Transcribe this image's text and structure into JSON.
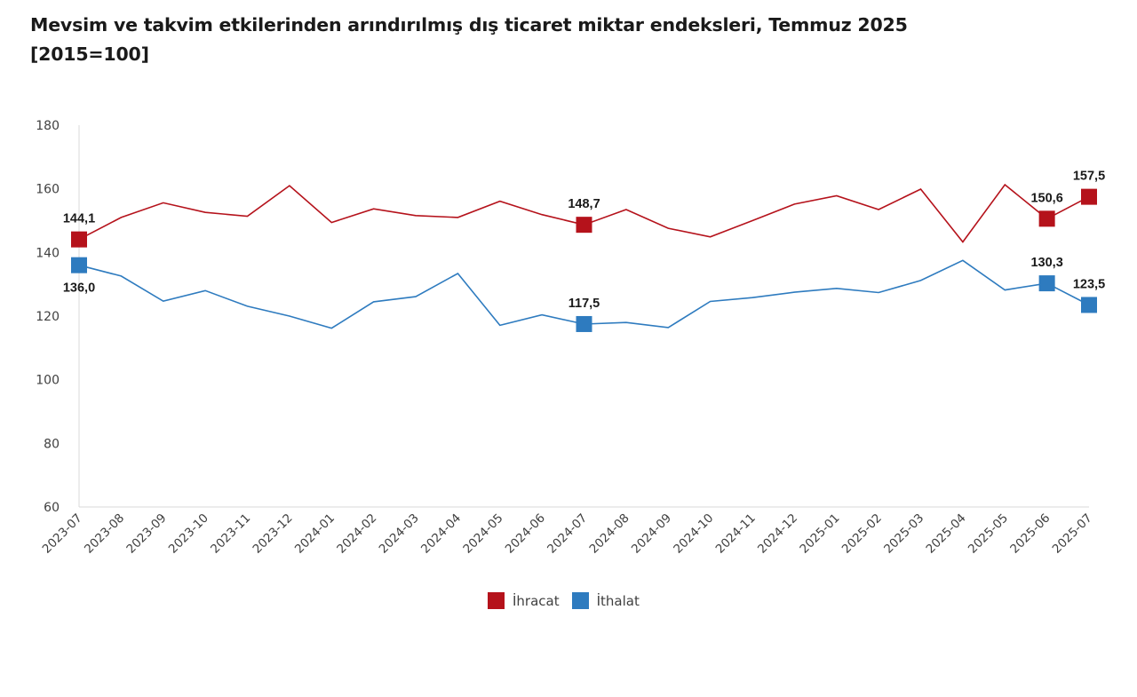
{
  "header": {
    "title_line1": "Mevsim ve takvim etkilerinden arındırılmış dış ticaret miktar endeksleri, Temmuz 2025",
    "title_line2": "[2015=100]"
  },
  "colors": {
    "ihracat": "#b5121b",
    "ithalat": "#2e7bbf",
    "axis": "#d9d9d9"
  },
  "legend": {
    "ihracat_label": "İhracat",
    "ithalat_label": "İthalat"
  },
  "chart_data": {
    "type": "line",
    "title": "Mevsim ve takvim etkilerinden arındırılmış dış ticaret miktar endeksleri, Temmuz 2025 [2015=100]",
    "xlabel": "",
    "ylabel": "",
    "ylim": [
      60,
      180
    ],
    "yticks": [
      60,
      80,
      100,
      120,
      140,
      160,
      180
    ],
    "grid": false,
    "legend_position": "bottom-center",
    "categories": [
      "2023-07",
      "2023-08",
      "2023-09",
      "2023-10",
      "2023-11",
      "2023-12",
      "2024-01",
      "2024-02",
      "2024-03",
      "2024-04",
      "2024-05",
      "2024-06",
      "2024-07",
      "2024-08",
      "2024-09",
      "2024-10",
      "2024-11",
      "2024-12",
      "2025-01",
      "2025-02",
      "2025-03",
      "2025-04",
      "2025-05",
      "2025-06",
      "2025-07"
    ],
    "series": [
      {
        "name": "İhracat",
        "color": "#b5121b",
        "values": [
          144.1,
          151.0,
          155.6,
          152.6,
          151.4,
          161.0,
          149.4,
          153.7,
          151.6,
          151.0,
          156.1,
          151.9,
          148.7,
          153.5,
          147.6,
          144.9,
          150.0,
          155.2,
          157.8,
          153.5,
          159.9,
          143.3,
          161.3,
          150.6,
          157.5
        ],
        "labeled_points": [
          {
            "index": 0,
            "label": "144,1",
            "position": "above"
          },
          {
            "index": 12,
            "label": "148,7",
            "position": "above"
          },
          {
            "index": 23,
            "label": "150,6",
            "position": "above"
          },
          {
            "index": 24,
            "label": "157,5",
            "position": "above"
          }
        ]
      },
      {
        "name": "İthalat",
        "color": "#2e7bbf",
        "values": [
          136.0,
          132.6,
          124.7,
          128.0,
          123.1,
          120.0,
          116.2,
          124.5,
          126.1,
          133.4,
          117.1,
          120.4,
          117.5,
          118.0,
          116.4,
          124.6,
          125.8,
          127.5,
          128.7,
          127.4,
          131.2,
          137.5,
          128.2,
          130.3,
          123.5
        ],
        "labeled_points": [
          {
            "index": 0,
            "label": "136,0",
            "position": "below"
          },
          {
            "index": 12,
            "label": "117,5",
            "position": "above"
          },
          {
            "index": 23,
            "label": "130,3",
            "position": "above"
          },
          {
            "index": 24,
            "label": "123,5",
            "position": "above"
          }
        ]
      }
    ]
  }
}
